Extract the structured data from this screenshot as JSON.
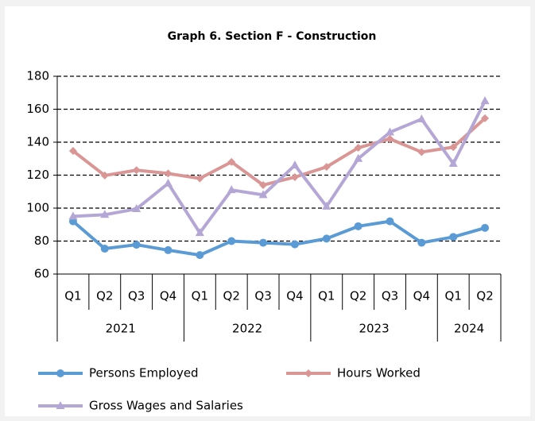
{
  "chart_data": {
    "type": "line",
    "title": "Graph 6. Section F - Construction",
    "categories": [
      "Q1",
      "Q2",
      "Q3",
      "Q4",
      "Q1",
      "Q2",
      "Q3",
      "Q4",
      "Q1",
      "Q2",
      "Q3",
      "Q4",
      "Q1",
      "Q2"
    ],
    "category_groups": [
      {
        "name": "2021",
        "size": 4
      },
      {
        "name": "2022",
        "size": 4
      },
      {
        "name": "2023",
        "size": 4
      },
      {
        "name": "2024",
        "size": 2
      }
    ],
    "series": [
      {
        "name": "Persons Employed",
        "color": "#5b9bd5",
        "marker": "circle",
        "values": [
          92,
          75.4,
          77.8,
          74.5,
          71.5,
          80,
          79,
          78,
          81.5,
          89,
          92,
          79,
          82.5,
          88
        ]
      },
      {
        "name": "Hours Worked",
        "color": "#d99694",
        "marker": "diamond",
        "values": [
          134.7,
          119.8,
          123,
          121,
          118,
          128,
          114,
          118.8,
          125,
          136.6,
          142,
          134,
          137,
          154.5
        ]
      },
      {
        "name": "Gross Wages and Salaries",
        "color": "#b4a7d6",
        "marker": "triangle",
        "values": [
          95,
          96,
          99.5,
          115,
          85,
          111,
          108,
          126,
          101,
          130,
          146,
          154,
          127,
          165
        ]
      }
    ],
    "ylim": [
      60,
      180
    ],
    "yticks": [
      60,
      80,
      100,
      120,
      140,
      160,
      180
    ],
    "grid": "dashed",
    "legend": "bottom"
  }
}
